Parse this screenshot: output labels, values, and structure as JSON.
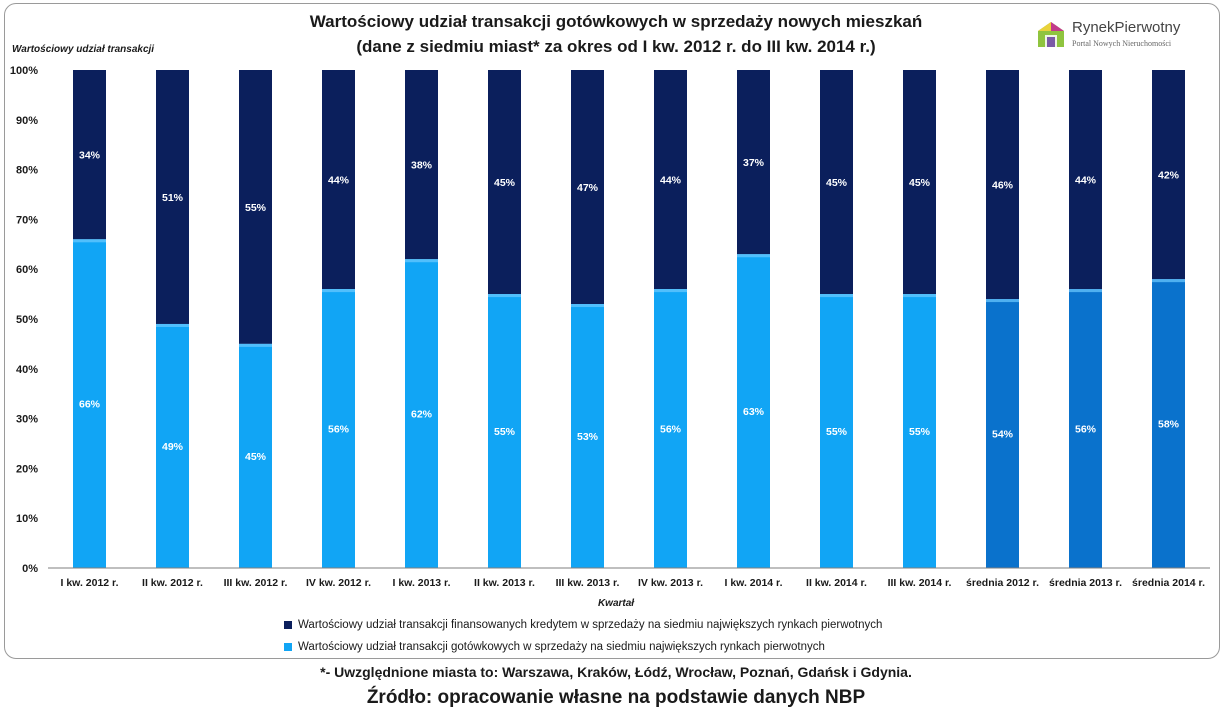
{
  "title_line1": "Wartościowy udział transakcji gotówkowych w sprzedaży nowych mieszkań",
  "title_line2": "(dane z siedmiu miast* za okres od I kw. 2012 r. do III kw. 2014 r.)",
  "logo": {
    "name": "RynekPierwotny",
    "tagline": "Portal Nowych Nieruchomości"
  },
  "footnote": "*- Uwzględnione miasta to: Warszawa, Kraków, Łódź, Wrocław, Poznań, Gdańsk i Gdynia.",
  "source": "Źródło: opracowanie własne na podstawie danych NBP",
  "colors": {
    "credit": "#0b1f5c",
    "cash": "#11a5f5",
    "cash_avg": "#0a72cc",
    "gridline": "#d9d9d9"
  },
  "chart_data": {
    "type": "bar",
    "stacked": true,
    "ylabel": "Wartościowy udział transakcji",
    "xlabel": "Kwartał",
    "ylim": [
      0,
      100
    ],
    "yticks": [
      "0%",
      "10%",
      "20%",
      "30%",
      "40%",
      "50%",
      "60%",
      "70%",
      "80%",
      "90%",
      "100%"
    ],
    "grid": false,
    "legend_position": "bottom",
    "categories": [
      "I kw. 2012 r.",
      "II kw. 2012 r.",
      "III kw. 2012 r.",
      "IV kw. 2012 r.",
      "I kw. 2013 r.",
      "II kw. 2013 r.",
      "III kw. 2013 r.",
      "IV kw. 2013 r.",
      "I kw. 2014 r.",
      "II kw. 2014 r.",
      "III kw. 2014 r.",
      "średnia 2012 r.",
      "średnia 2013 r.",
      "średnia 2014 r."
    ],
    "series": [
      {
        "name": "Wartościowy udział transakcji gotówkowych w sprzedaży na siedmiu największych rynkach pierwotnych",
        "values": [
          66,
          49,
          45,
          56,
          62,
          55,
          53,
          56,
          63,
          55,
          55,
          54,
          56,
          58
        ],
        "labels": [
          "66%",
          "49%",
          "45%",
          "56%",
          "62%",
          "55%",
          "53%",
          "56%",
          "63%",
          "55%",
          "55%",
          "54%",
          "56%",
          "58%"
        ]
      },
      {
        "name": "Wartościowy udział transakcji finansowanych kredytem w sprzedaży na siedmiu największych rynkach pierwotnych",
        "values": [
          34,
          51,
          55,
          44,
          38,
          45,
          47,
          44,
          37,
          45,
          45,
          46,
          44,
          42
        ],
        "labels": [
          "34%",
          "51%",
          "55%",
          "44%",
          "38%",
          "45%",
          "47%",
          "44%",
          "37%",
          "45%",
          "45%",
          "46%",
          "44%",
          "42%"
        ]
      }
    ]
  }
}
